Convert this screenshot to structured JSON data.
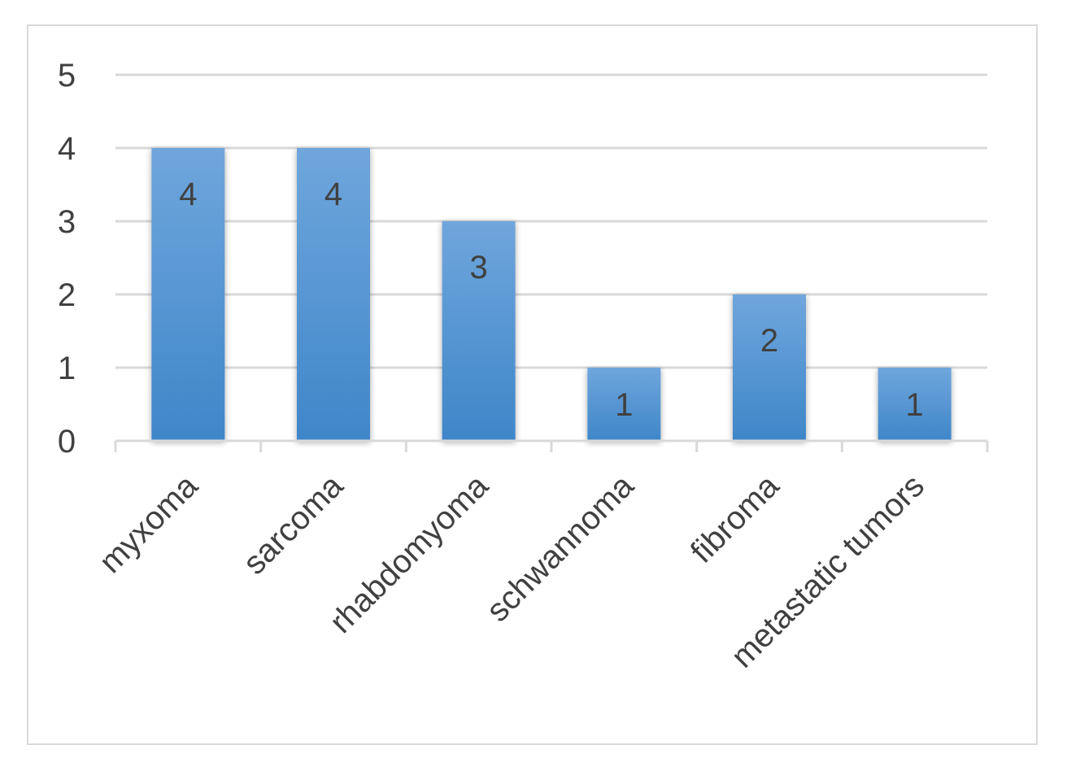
{
  "chart_data": {
    "type": "bar",
    "categories": [
      "myxoma",
      "sarcoma",
      "rhabdomyoma",
      "schwannoma",
      "fibroma",
      "metastatic tumors"
    ],
    "values": [
      4,
      4,
      3,
      1,
      2,
      1
    ],
    "title": "",
    "xlabel": "",
    "ylabel": "",
    "ylim": [
      0,
      5
    ],
    "yticks": [
      "0",
      "1",
      "2",
      "3",
      "4",
      "5"
    ],
    "data_labels": [
      "4",
      "4",
      "3",
      "1",
      "2",
      "1"
    ],
    "grid": true,
    "legend": "none",
    "colors": {
      "bar_top": "#6fa6dc",
      "bar_bottom": "#3f86c9",
      "grid": "#d9d9d9",
      "axis": "#d9d9d9",
      "text": "#404040"
    }
  }
}
